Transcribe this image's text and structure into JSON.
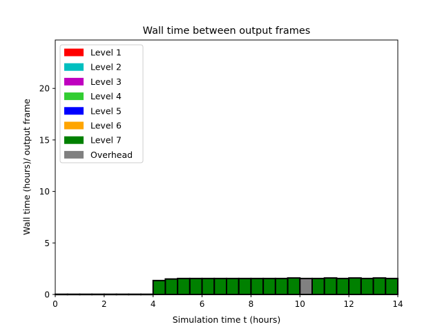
{
  "chart_data": {
    "type": "bar",
    "title": "Wall time between output frames",
    "xlabel": "Simulation time t (hours)",
    "ylabel": "Wall time (hours)/ output frame",
    "xlim": [
      0,
      14
    ],
    "ylim": [
      0,
      24.7
    ],
    "xticks": [
      "0",
      "2",
      "4",
      "6",
      "8",
      "10",
      "12",
      "14"
    ],
    "yticks": [
      "0",
      "5",
      "10",
      "15",
      "20"
    ],
    "grid": false,
    "legend_placement": "top-left",
    "legend": [
      {
        "label": "Level 1",
        "color": "#ff0000"
      },
      {
        "label": "Level 2",
        "color": "#00bfbf"
      },
      {
        "label": "Level 3",
        "color": "#bf00bf"
      },
      {
        "label": "Level 4",
        "color": "#32cd32"
      },
      {
        "label": "Level 5",
        "color": "#0000ff"
      },
      {
        "label": "Level 6",
        "color": "#ffa500"
      },
      {
        "label": "Level 7",
        "color": "#008000"
      },
      {
        "label": "Overhead",
        "color": "#808080"
      }
    ],
    "bar_width": 0.5,
    "bar_starts": [
      0,
      0.5,
      1,
      1.5,
      2,
      2.5,
      3,
      3.5,
      4,
      4.5,
      5,
      5.5,
      6,
      6.5,
      7,
      7.5,
      8,
      8.5,
      9,
      9.5,
      10,
      10.5,
      11,
      11.5,
      12,
      12.5,
      13,
      13.5
    ],
    "level7": [
      0.02,
      0.02,
      0.02,
      0.02,
      0.02,
      0.02,
      0.02,
      0.02,
      1.35,
      1.5,
      1.55,
      1.55,
      1.55,
      1.55,
      1.55,
      1.55,
      1.55,
      1.55,
      1.55,
      1.6,
      0,
      1.55,
      1.6,
      1.55,
      1.6,
      1.55,
      1.6,
      1.55
    ],
    "overhead": [
      0,
      0,
      0,
      0,
      0,
      0,
      0,
      0,
      0,
      0,
      0,
      0,
      0,
      0,
      0,
      0,
      0,
      0,
      0,
      0,
      1.55,
      0,
      0,
      0,
      0,
      0,
      0,
      0
    ]
  }
}
